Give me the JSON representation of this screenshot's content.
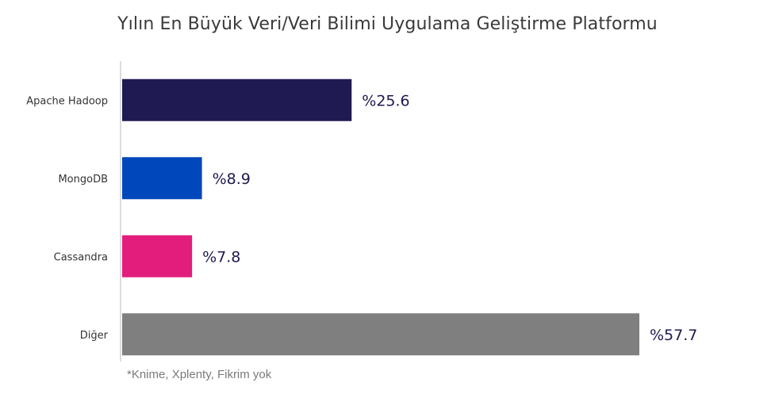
{
  "chart_data": {
    "type": "bar",
    "orientation": "horizontal",
    "title": "Yılın En Büyük Veri/Veri Bilimi Uygulama Geliştirme Platformu",
    "categories": [
      "Apache Hadoop",
      "MongoDB",
      "Cassandra",
      "Diğer"
    ],
    "values": [
      25.6,
      8.9,
      7.8,
      57.7
    ],
    "value_labels": [
      "%25.6",
      "%8.9",
      "%7.8",
      "%57.7"
    ],
    "colors": [
      "#201a52",
      "#0047bb",
      "#e31d7c",
      "#7f7f7f"
    ],
    "xlim": [
      0,
      60
    ],
    "grid": false,
    "legend": "none",
    "footnote": "*Knime, Xplenty, Fikrim yok"
  }
}
